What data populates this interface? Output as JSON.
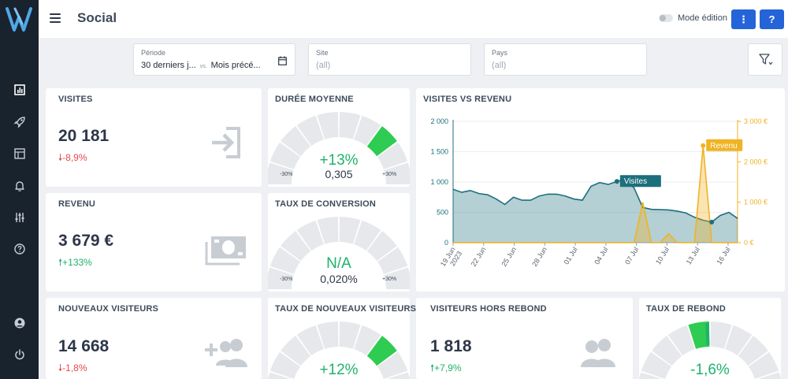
{
  "app": {
    "page_title": "Social"
  },
  "header": {
    "mode_label": "Mode édition",
    "more_label": "⋮",
    "help_label": "?"
  },
  "filters": {
    "periode": {
      "label": "Période",
      "value": "30 derniers j...",
      "vs": "vs.",
      "compare": "Mois précé..."
    },
    "site": {
      "label": "Site",
      "value": "(all)"
    },
    "pays": {
      "label": "Pays",
      "value": "(all)"
    }
  },
  "kpis": {
    "visites": {
      "title": "VISITES",
      "value": "20 181",
      "delta": "-8,9%",
      "trend": "down"
    },
    "revenu": {
      "title": "REVENU",
      "value": "3 679 €",
      "delta": "+133%",
      "trend": "up"
    },
    "nouveaux": {
      "title": "NOUVEAUX VISITEURS",
      "value": "14 668",
      "delta": "-1,8%",
      "trend": "down"
    },
    "hors_rebond": {
      "title": "VISITEURS HORS REBOND",
      "value": "1 818",
      "delta": "+7,9%",
      "trend": "up"
    }
  },
  "gauges": {
    "duree": {
      "title": "DURÉE MOYENNE",
      "pct": "+13%",
      "sub": "0,305",
      "min": "-30%",
      "max": "+30%",
      "level": 0.72
    },
    "conversion": {
      "title": "TAUX DE CONVERSION",
      "pct": "N/A",
      "sub": "0,020%",
      "min": "-30%",
      "max": "+30%",
      "level": null
    },
    "taux_nouveaux": {
      "title": "TAUX DE NOUVEAUX VISITEURS",
      "pct": "+12%",
      "level": 0.7
    },
    "rebond": {
      "title": "TAUX DE REBOND",
      "pct": "-1,6%",
      "level": 0.47
    }
  },
  "colors": {
    "sidebar": "#19232d",
    "accent": "#2563d8",
    "visites": "#1c6f7d",
    "revenu": "#f0b323",
    "gauge_active": "#2ecc52",
    "positive": "#20b26b",
    "negative": "#e5484d"
  },
  "chart_data": {
    "type": "area",
    "title": "VISITES VS REVENU",
    "x_ticks": [
      "19 Jun 2023",
      "22 Jun",
      "25 Jun",
      "28 Jun",
      "01 Jul",
      "04 Jul",
      "07 Jul",
      "10 Jul",
      "13 Jul",
      "16 Jul"
    ],
    "y_left": {
      "ticks": [
        "0",
        "500",
        "1 000",
        "1 500",
        "2 000"
      ],
      "range": [
        0,
        2000
      ]
    },
    "y_right": {
      "ticks": [
        "0 €",
        "1 000 €",
        "2 000 €",
        "3 000 €"
      ],
      "range": [
        0,
        3000
      ]
    },
    "series": [
      {
        "name": "Visites",
        "axis": "left",
        "values": [
          880,
          830,
          860,
          810,
          790,
          720,
          630,
          750,
          700,
          700,
          770,
          800,
          800,
          770,
          720,
          700,
          930,
          990,
          960,
          1010,
          1050,
          900,
          580,
          550,
          545,
          540,
          520,
          490,
          420,
          370,
          340,
          450,
          500,
          400
        ]
      },
      {
        "name": "Revenu",
        "axis": "right",
        "values": [
          0,
          0,
          0,
          0,
          0,
          0,
          0,
          0,
          0,
          0,
          0,
          0,
          0,
          0,
          0,
          0,
          0,
          0,
          0,
          0,
          0,
          0,
          1000,
          0,
          0,
          220,
          0,
          0,
          0,
          2400,
          0,
          0,
          0,
          0
        ]
      }
    ],
    "annotations": [
      {
        "series": "Visites",
        "label": "Visites",
        "index": 19
      },
      {
        "series": "Revenu",
        "label": "Revenu",
        "index": 29
      }
    ]
  }
}
